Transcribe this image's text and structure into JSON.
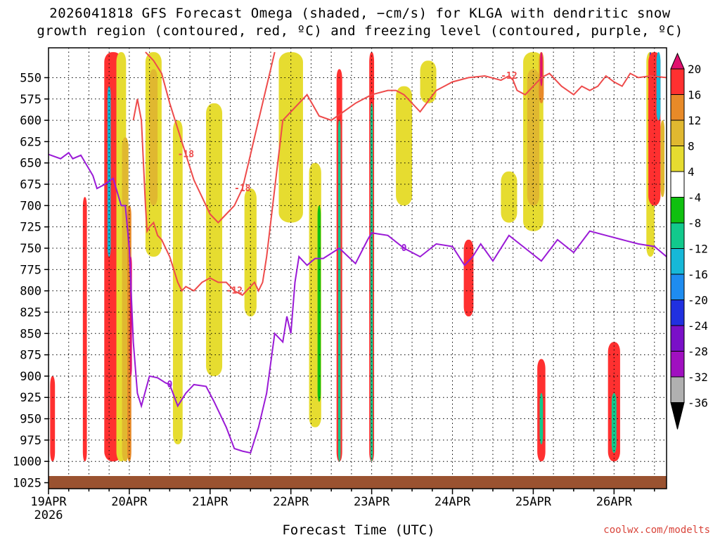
{
  "chart_data": {
    "type": "heatmap",
    "title_line1": "2026041818 GFS Forecast Omega (shaded, −cm/s) for KLGA with dendritic snow",
    "title_line2": "growth region (contoured, red, ºC) and freezing level (contoured, purple, ºC)",
    "xlabel": "Forecast Time (UTC)",
    "ylabel": "",
    "footer": "coolwx.com/modelts",
    "x_ticks": [
      "19APR",
      "20APR",
      "21APR",
      "22APR",
      "23APR",
      "24APR",
      "25APR",
      "26APR"
    ],
    "x_year_label": "2026",
    "x_range_days": [
      0,
      7.65
    ],
    "y_ticks": [
      550,
      575,
      600,
      625,
      650,
      675,
      700,
      725,
      750,
      775,
      800,
      825,
      850,
      875,
      900,
      925,
      950,
      975,
      1000,
      1025
    ],
    "y_range_hpa": [
      515,
      1032
    ],
    "colorbar": {
      "labels": [
        20,
        16,
        12,
        8,
        4,
        -4,
        -8,
        -12,
        -16,
        -20,
        -24,
        -28,
        -32,
        -36
      ],
      "colors": [
        "#e0106e",
        "#ff3030",
        "#e88a28",
        "#e0b830",
        "#e6dc30",
        "#ffffff",
        "#10c010",
        "#12c98c",
        "#16b8d8",
        "#1e8cf0",
        "#2030e0",
        "#7a10c8",
        "#a010c0",
        "#b0b0b0",
        "#000000"
      ]
    },
    "series": [
      {
        "name": "freezing level 0ºC",
        "color": "#9a1ad6",
        "label": "0",
        "x": [
          0.0,
          0.15,
          0.25,
          0.3,
          0.4,
          0.55,
          0.6,
          0.7,
          0.8,
          0.9,
          0.95,
          1.0,
          1.05,
          1.1,
          1.15,
          1.25,
          1.35,
          1.45,
          1.5,
          1.6,
          1.7,
          1.8,
          1.95,
          2.05,
          2.2,
          2.3,
          2.4,
          2.5,
          2.6,
          2.7,
          2.8,
          2.9,
          2.95,
          3.0,
          3.05,
          3.1,
          3.2,
          3.3,
          3.4,
          3.6,
          3.8,
          3.95,
          4.0,
          4.2,
          4.4,
          4.6,
          4.8,
          5.0,
          5.15,
          5.25,
          5.35,
          5.5,
          5.7,
          5.9,
          6.1,
          6.3,
          6.5,
          6.7,
          6.9,
          7.1,
          7.3,
          7.5,
          7.65
        ],
        "y": [
          640,
          645,
          638,
          645,
          641,
          665,
          680,
          675,
          668,
          700,
          700,
          750,
          860,
          920,
          935,
          900,
          902,
          908,
          910,
          935,
          920,
          910,
          912,
          930,
          960,
          985,
          988,
          990,
          960,
          920,
          850,
          860,
          830,
          850,
          790,
          760,
          770,
          762,
          762,
          750,
          768,
          740,
          732,
          735,
          750,
          760,
          745,
          748,
          770,
          760,
          745,
          765,
          735,
          750,
          765,
          740,
          755,
          730,
          735,
          740,
          745,
          748,
          760
        ]
      },
      {
        "name": "dendritic -12ºC",
        "color": "#ee4b4b",
        "label": "-12",
        "x": [
          1.05,
          1.1,
          1.15,
          1.2,
          1.22,
          1.25,
          1.3,
          1.35,
          1.4,
          1.5,
          1.6,
          1.65,
          1.7,
          1.8,
          1.9,
          2.0,
          2.1,
          2.2,
          2.3,
          2.4,
          2.55,
          2.6,
          2.65,
          2.7,
          2.8,
          2.9,
          3.0,
          3.2,
          3.35,
          3.5,
          3.65,
          3.8,
          4.0,
          4.2,
          4.3,
          4.4,
          4.6,
          4.8,
          5.0,
          5.2,
          5.4,
          5.6,
          5.7,
          5.75,
          5.8,
          5.9,
          6.0,
          6.1,
          6.2,
          6.35,
          6.5,
          6.6,
          6.7,
          6.8,
          6.9,
          7.0,
          7.1,
          7.2,
          7.3,
          7.45,
          7.65
        ],
        "y": [
          600,
          575,
          600,
          700,
          730,
          725,
          720,
          735,
          740,
          760,
          790,
          800,
          795,
          800,
          790,
          785,
          790,
          790,
          800,
          805,
          790,
          800,
          790,
          760,
          680,
          600,
          590,
          570,
          595,
          600,
          590,
          580,
          570,
          565,
          565,
          570,
          590,
          565,
          555,
          550,
          548,
          553,
          548,
          553,
          565,
          570,
          560,
          550,
          545,
          560,
          570,
          560,
          565,
          560,
          548,
          555,
          560,
          545,
          550,
          548,
          550
        ]
      },
      {
        "name": "dendritic -18ºC",
        "color": "#ee4b4b",
        "label": "-18",
        "x": [
          1.2,
          1.3,
          1.4,
          1.5,
          1.6,
          1.7,
          1.8,
          1.9,
          2.0,
          2.1,
          2.2,
          2.3,
          2.4,
          2.5,
          2.6,
          2.7,
          2.75,
          2.8
        ],
        "y": [
          520,
          530,
          545,
          580,
          610,
          640,
          670,
          690,
          710,
          720,
          710,
          700,
          680,
          640,
          600,
          560,
          540,
          520
        ]
      }
    ]
  }
}
